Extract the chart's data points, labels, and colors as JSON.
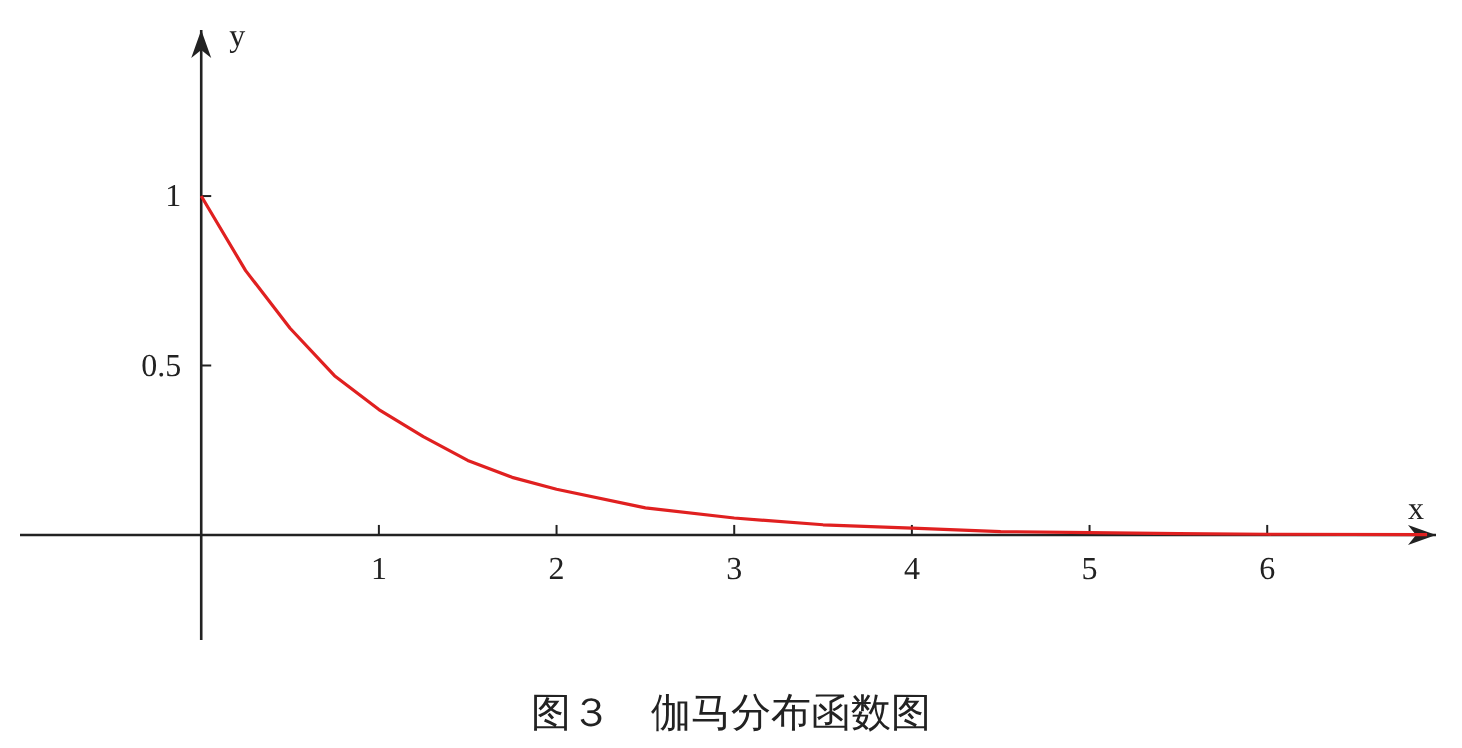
{
  "chart_data": {
    "type": "line",
    "title": "图３　伽马分布函数图",
    "xlabel": "x",
    "ylabel": "y",
    "xlim": [
      -1.02,
      6.95
    ],
    "ylim": [
      -0.31,
      1.49
    ],
    "xticks": [
      1,
      2,
      3,
      4,
      5,
      6
    ],
    "yticks": [
      0.5,
      1
    ],
    "grid": false,
    "marker": "none",
    "line_style": "solid",
    "series": [
      {
        "color": "#e02020",
        "x": [
          0,
          0.25,
          0.5,
          0.75,
          1,
          1.25,
          1.5,
          1.75,
          2,
          2.5,
          3,
          3.5,
          4,
          4.5,
          5,
          5.5,
          6,
          6.9
        ],
        "values": [
          1,
          0.78,
          0.61,
          0.47,
          0.37,
          0.29,
          0.22,
          0.17,
          0.135,
          0.08,
          0.05,
          0.03,
          0.02,
          0.01,
          0.007,
          0.004,
          0.002,
          0.001
        ]
      }
    ]
  }
}
